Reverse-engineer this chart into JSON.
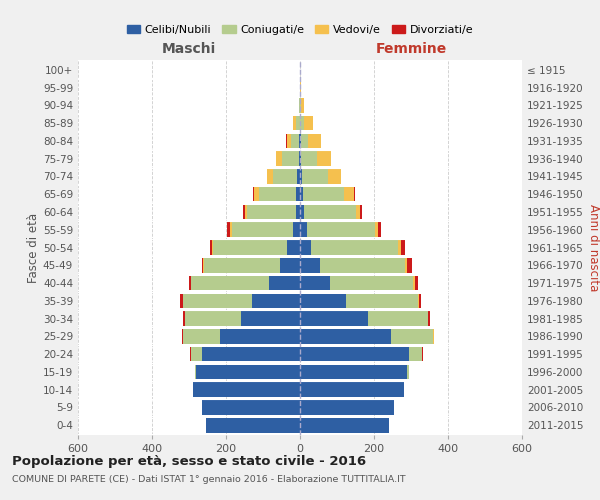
{
  "age_groups": [
    "0-4",
    "5-9",
    "10-14",
    "15-19",
    "20-24",
    "25-29",
    "30-34",
    "35-39",
    "40-44",
    "45-49",
    "50-54",
    "55-59",
    "60-64",
    "65-69",
    "70-74",
    "75-79",
    "80-84",
    "85-89",
    "90-94",
    "95-99",
    "100+"
  ],
  "birth_years": [
    "2011-2015",
    "2006-2010",
    "2001-2005",
    "1996-2000",
    "1991-1995",
    "1986-1990",
    "1981-1985",
    "1976-1980",
    "1971-1975",
    "1966-1970",
    "1961-1965",
    "1956-1960",
    "1951-1955",
    "1946-1950",
    "1941-1945",
    "1936-1940",
    "1931-1935",
    "1926-1930",
    "1921-1925",
    "1916-1920",
    "≤ 1915"
  ],
  "maschi_celibe": [
    255,
    265,
    290,
    280,
    265,
    215,
    160,
    130,
    85,
    55,
    35,
    18,
    12,
    10,
    8,
    4,
    2,
    1,
    0,
    0,
    0
  ],
  "maschi_coniugato": [
    0,
    0,
    0,
    5,
    30,
    100,
    150,
    185,
    210,
    205,
    200,
    165,
    130,
    100,
    65,
    45,
    22,
    10,
    2,
    0,
    0
  ],
  "maschi_vedovo": [
    0,
    0,
    0,
    0,
    0,
    0,
    0,
    0,
    0,
    1,
    2,
    5,
    8,
    15,
    15,
    15,
    12,
    8,
    2,
    1,
    0
  ],
  "maschi_divorziato": [
    0,
    0,
    0,
    0,
    2,
    5,
    5,
    8,
    5,
    5,
    5,
    8,
    5,
    1,
    1,
    1,
    1,
    0,
    0,
    0,
    0
  ],
  "femmine_celibe": [
    240,
    255,
    280,
    290,
    295,
    245,
    185,
    125,
    80,
    55,
    30,
    18,
    10,
    8,
    5,
    3,
    2,
    1,
    0,
    0,
    0
  ],
  "femmine_coniugata": [
    0,
    0,
    0,
    5,
    35,
    115,
    160,
    195,
    225,
    230,
    235,
    185,
    140,
    110,
    70,
    42,
    20,
    10,
    2,
    0,
    0
  ],
  "femmine_vedova": [
    0,
    0,
    0,
    0,
    1,
    1,
    1,
    2,
    5,
    5,
    8,
    8,
    12,
    28,
    35,
    38,
    35,
    25,
    10,
    2,
    1
  ],
  "femmine_divorziata": [
    0,
    0,
    0,
    0,
    1,
    2,
    5,
    5,
    8,
    12,
    10,
    8,
    5,
    2,
    2,
    1,
    1,
    0,
    0,
    0,
    0
  ],
  "colors": {
    "celibe": "#2e5fa3",
    "coniugato": "#b5cc8e",
    "vedovo": "#f5c04e",
    "divorziato": "#cc1a1a"
  },
  "title": "Popolazione per età, sesso e stato civile - 2016",
  "subtitle": "COMUNE DI PARETE (CE) - Dati ISTAT 1° gennaio 2016 - Elaborazione TUTTITALIA.IT",
  "xlabel_left": "Maschi",
  "xlabel_right": "Femmine",
  "ylabel_left": "Fasce di età",
  "ylabel_right": "Anni di nascita",
  "xlim": 600,
  "bg_color": "#f0f0f0",
  "plot_bg": "#ffffff",
  "grid_color": "#cccccc"
}
